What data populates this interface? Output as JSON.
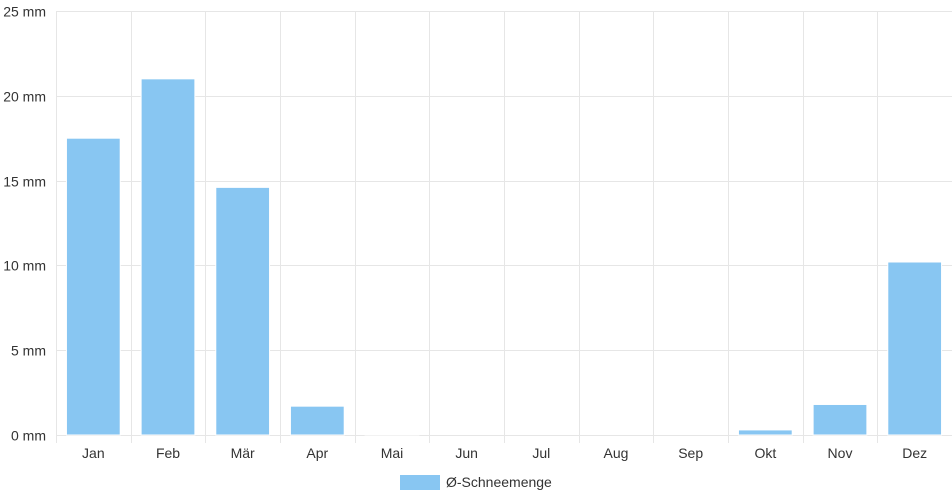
{
  "chart_data": {
    "type": "bar",
    "categories": [
      "Jan",
      "Feb",
      "Mär",
      "Apr",
      "Mai",
      "Jun",
      "Jul",
      "Aug",
      "Sep",
      "Okt",
      "Nov",
      "Dez"
    ],
    "series": [
      {
        "name": "Ø-Schneemenge",
        "values": [
          17.5,
          21.0,
          14.6,
          1.7,
          0.05,
          0,
          0,
          0,
          0,
          0.3,
          1.8,
          10.2
        ],
        "color": "#88c6f2"
      }
    ],
    "ylim": [
      0,
      25
    ],
    "yticks": [
      {
        "value": 0,
        "label": "0 mm"
      },
      {
        "value": 5,
        "label": "5 mm"
      },
      {
        "value": 10,
        "label": "10 mm"
      },
      {
        "value": 15,
        "label": "15 mm"
      },
      {
        "value": 20,
        "label": "20 mm"
      },
      {
        "value": 25,
        "label": "25 mm"
      }
    ],
    "grid": true,
    "legend": "bottom-center",
    "colors": {
      "grid": "#e6e6e6",
      "axis_text": "#333333",
      "bar_border": "#ffffff"
    }
  }
}
